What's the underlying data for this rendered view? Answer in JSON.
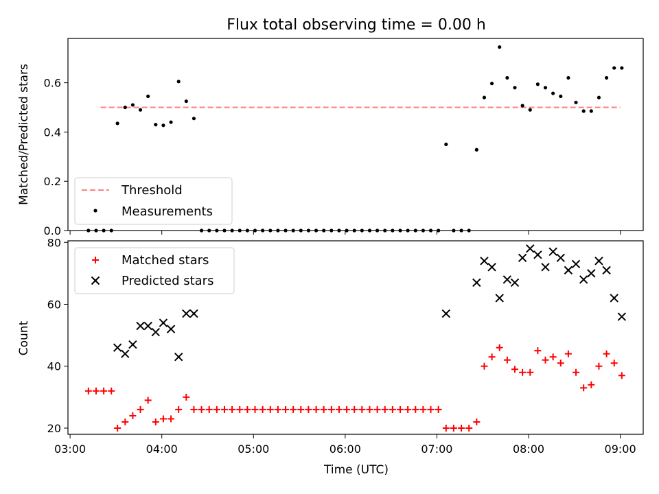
{
  "title": "Flux total observing time = 0.00 h",
  "chart_data": [
    {
      "type": "scatter",
      "ylabel": "Matched/Predicted stars",
      "ylim": [
        0,
        0.78
      ],
      "yticks": [
        "0.0",
        "0.2",
        "0.4",
        "0.6"
      ],
      "ytick_values": [
        0,
        0.2,
        0.4,
        0.6
      ],
      "xlim": [
        "03:00",
        "09:15"
      ],
      "legend_position": "lower-left",
      "threshold": {
        "name": "Threshold",
        "y": 0.5,
        "x_start": "03:20",
        "x_end": "09:00",
        "color": "#ff7f7f"
      },
      "series": [
        {
          "name": "Measurements",
          "color": "#000000",
          "points": [
            [
              "03:12",
              0
            ],
            [
              "03:17",
              0
            ],
            [
              "03:22",
              0
            ],
            [
              "03:27",
              0
            ],
            [
              "03:31",
              0.435
            ],
            [
              "03:36",
              0.5
            ],
            [
              "03:41",
              0.51
            ],
            [
              "03:46",
              0.49
            ],
            [
              "03:51",
              0.545
            ],
            [
              "03:56",
              0.43
            ],
            [
              "04:01",
              0.427
            ],
            [
              "04:06",
              0.44
            ],
            [
              "04:11",
              0.605
            ],
            [
              "04:16",
              0.525
            ],
            [
              "04:21",
              0.455
            ],
            [
              "04:26",
              0
            ],
            [
              "04:31",
              0
            ],
            [
              "04:36",
              0
            ],
            [
              "04:41",
              0
            ],
            [
              "04:46",
              0
            ],
            [
              "04:51",
              0
            ],
            [
              "04:56",
              0
            ],
            [
              "05:01",
              0
            ],
            [
              "05:06",
              0
            ],
            [
              "05:11",
              0
            ],
            [
              "05:16",
              0
            ],
            [
              "05:21",
              0
            ],
            [
              "05:26",
              0
            ],
            [
              "05:31",
              0
            ],
            [
              "05:36",
              0
            ],
            [
              "05:41",
              0
            ],
            [
              "05:46",
              0
            ],
            [
              "05:51",
              0
            ],
            [
              "05:56",
              0
            ],
            [
              "06:01",
              0
            ],
            [
              "06:06",
              0
            ],
            [
              "06:11",
              0
            ],
            [
              "06:16",
              0
            ],
            [
              "06:21",
              0
            ],
            [
              "06:26",
              0
            ],
            [
              "06:31",
              0
            ],
            [
              "06:36",
              0
            ],
            [
              "06:41",
              0
            ],
            [
              "06:46",
              0
            ],
            [
              "06:51",
              0
            ],
            [
              "06:56",
              0
            ],
            [
              "07:01",
              0
            ],
            [
              "07:06",
              0.35
            ],
            [
              "07:11",
              0
            ],
            [
              "07:16",
              0
            ],
            [
              "07:21",
              0
            ],
            [
              "07:26",
              0.328
            ],
            [
              "07:31",
              0.54
            ],
            [
              "07:36",
              0.597
            ],
            [
              "07:41",
              0.745
            ],
            [
              "07:46",
              0.62
            ],
            [
              "07:51",
              0.58
            ],
            [
              "07:56",
              0.507
            ],
            [
              "08:01",
              0.49
            ],
            [
              "08:06",
              0.594
            ],
            [
              "08:11",
              0.58
            ],
            [
              "08:16",
              0.557
            ],
            [
              "08:21",
              0.545
            ],
            [
              "08:26",
              0.62
            ],
            [
              "08:31",
              0.52
            ],
            [
              "08:36",
              0.485
            ],
            [
              "08:41",
              0.485
            ],
            [
              "08:46",
              0.54
            ],
            [
              "08:51",
              0.62
            ],
            [
              "08:56",
              0.66
            ],
            [
              "09:01",
              0.66
            ]
          ]
        }
      ]
    },
    {
      "type": "scatter",
      "xlabel": "Time (UTC)",
      "ylabel": "Count",
      "ylim": [
        18,
        80.5
      ],
      "yticks": [
        "20",
        "40",
        "60",
        "80"
      ],
      "ytick_values": [
        20,
        40,
        60,
        80
      ],
      "xlim": [
        "03:00",
        "09:15"
      ],
      "xticks": [
        "03:00",
        "04:00",
        "05:00",
        "06:00",
        "07:00",
        "08:00",
        "09:00"
      ],
      "legend_position": "upper-left",
      "series": [
        {
          "name": "Matched stars",
          "marker": "plus",
          "color": "#ff0000",
          "points": [
            [
              "03:12",
              32
            ],
            [
              "03:17",
              32
            ],
            [
              "03:22",
              32
            ],
            [
              "03:27",
              32
            ],
            [
              "03:31",
              20
            ],
            [
              "03:36",
              22
            ],
            [
              "03:41",
              24
            ],
            [
              "03:46",
              26
            ],
            [
              "03:51",
              29
            ],
            [
              "03:56",
              22
            ],
            [
              "04:01",
              23
            ],
            [
              "04:06",
              23
            ],
            [
              "04:11",
              26
            ],
            [
              "04:16",
              30
            ],
            [
              "04:21",
              26
            ],
            [
              "04:26",
              26
            ],
            [
              "04:31",
              26
            ],
            [
              "04:36",
              26
            ],
            [
              "04:41",
              26
            ],
            [
              "04:46",
              26
            ],
            [
              "04:51",
              26
            ],
            [
              "04:56",
              26
            ],
            [
              "05:01",
              26
            ],
            [
              "05:06",
              26
            ],
            [
              "05:11",
              26
            ],
            [
              "05:16",
              26
            ],
            [
              "05:21",
              26
            ],
            [
              "05:26",
              26
            ],
            [
              "05:31",
              26
            ],
            [
              "05:36",
              26
            ],
            [
              "05:41",
              26
            ],
            [
              "05:46",
              26
            ],
            [
              "05:51",
              26
            ],
            [
              "05:56",
              26
            ],
            [
              "06:01",
              26
            ],
            [
              "06:06",
              26
            ],
            [
              "06:11",
              26
            ],
            [
              "06:16",
              26
            ],
            [
              "06:21",
              26
            ],
            [
              "06:26",
              26
            ],
            [
              "06:31",
              26
            ],
            [
              "06:36",
              26
            ],
            [
              "06:41",
              26
            ],
            [
              "06:46",
              26
            ],
            [
              "06:51",
              26
            ],
            [
              "06:56",
              26
            ],
            [
              "07:01",
              26
            ],
            [
              "07:06",
              20
            ],
            [
              "07:11",
              20
            ],
            [
              "07:16",
              20
            ],
            [
              "07:21",
              20
            ],
            [
              "07:26",
              22
            ],
            [
              "07:31",
              40
            ],
            [
              "07:36",
              43
            ],
            [
              "07:41",
              46
            ],
            [
              "07:46",
              42
            ],
            [
              "07:51",
              39
            ],
            [
              "07:56",
              38
            ],
            [
              "08:01",
              38
            ],
            [
              "08:06",
              45
            ],
            [
              "08:11",
              42
            ],
            [
              "08:16",
              43
            ],
            [
              "08:21",
              41
            ],
            [
              "08:26",
              44
            ],
            [
              "08:31",
              38
            ],
            [
              "08:36",
              33
            ],
            [
              "08:41",
              34
            ],
            [
              "08:46",
              40
            ],
            [
              "08:51",
              44
            ],
            [
              "08:56",
              41
            ],
            [
              "09:01",
              37
            ]
          ]
        },
        {
          "name": "Predicted stars",
          "marker": "x",
          "color": "#000000",
          "points": [
            [
              "03:31",
              46
            ],
            [
              "03:36",
              44
            ],
            [
              "03:41",
              47
            ],
            [
              "03:46",
              53
            ],
            [
              "03:51",
              53
            ],
            [
              "03:56",
              51
            ],
            [
              "04:01",
              54
            ],
            [
              "04:06",
              52
            ],
            [
              "04:11",
              43
            ],
            [
              "04:16",
              57
            ],
            [
              "04:21",
              57
            ],
            [
              "07:06",
              57
            ],
            [
              "07:26",
              67
            ],
            [
              "07:31",
              74
            ],
            [
              "07:36",
              72
            ],
            [
              "07:41",
              62
            ],
            [
              "07:46",
              68
            ],
            [
              "07:51",
              67
            ],
            [
              "07:56",
              75
            ],
            [
              "08:01",
              78
            ],
            [
              "08:06",
              76
            ],
            [
              "08:11",
              72
            ],
            [
              "08:16",
              77
            ],
            [
              "08:21",
              75
            ],
            [
              "08:26",
              71
            ],
            [
              "08:31",
              73
            ],
            [
              "08:36",
              68
            ],
            [
              "08:41",
              70
            ],
            [
              "08:46",
              74
            ],
            [
              "08:51",
              71
            ],
            [
              "08:56",
              62
            ],
            [
              "09:01",
              56
            ]
          ]
        }
      ]
    }
  ]
}
